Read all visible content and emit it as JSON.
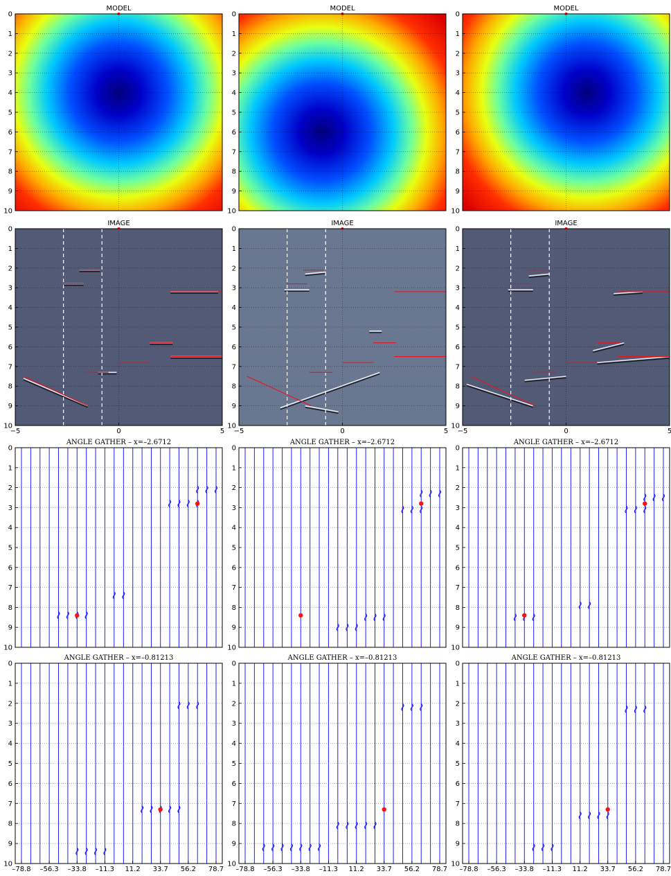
{
  "chart_data": {
    "type": "figure_grid",
    "rows": [
      {
        "title": "MODEL",
        "type": "heatmap",
        "xlim": [
          -5,
          5
        ],
        "ylim": [
          0,
          10
        ],
        "yticks": [
          "0",
          "1",
          "2",
          "3",
          "4",
          "5",
          "6",
          "7",
          "8",
          "9",
          "10"
        ],
        "xticks": [],
        "panels": [
          {
            "center": [
              0,
              4
            ]
          },
          {
            "center": [
              -1,
              6
            ]
          },
          {
            "center": [
              1,
              4
            ]
          }
        ]
      },
      {
        "title": "IMAGE",
        "type": "heatmap",
        "xlim": [
          -5,
          5
        ],
        "ylim": [
          0,
          10
        ],
        "yticks": [
          "0",
          "1",
          "2",
          "3",
          "4",
          "5",
          "6",
          "7",
          "8",
          "9",
          "10"
        ],
        "xticks": [
          "-5",
          "0",
          "5"
        ],
        "dashed_lines_x": [
          -2.6712,
          -0.81213
        ],
        "true_reflectors": [
          {
            "x": [
              -2.7,
              -1.7
            ],
            "y": [
              2.8,
              2.8
            ]
          },
          {
            "x": [
              -1.9,
              -0.9
            ],
            "y": [
              2.1,
              2.1
            ]
          },
          {
            "x": [
              2.5,
              5.0
            ],
            "y": [
              3.2,
              3.2
            ]
          },
          {
            "x": [
              1.5,
              2.6
            ],
            "y": [
              5.8,
              5.8
            ]
          },
          {
            "x": [
              2.5,
              5.0
            ],
            "y": [
              6.5,
              6.5
            ]
          },
          {
            "x": [
              0.0,
              1.5
            ],
            "y": [
              6.8,
              6.8
            ]
          },
          {
            "x": [
              -1.6,
              -0.5
            ],
            "y": [
              7.3,
              7.3
            ]
          },
          {
            "x": [
              -4.6,
              -1.5
            ],
            "y": [
              7.5,
              9.0
            ]
          }
        ]
      },
      {
        "title": "ANGLE GATHER – x=–2.6712",
        "type": "line",
        "ylim": [
          0,
          10
        ],
        "yticks": [
          "0",
          "1",
          "2",
          "3",
          "4",
          "5",
          "6",
          "7",
          "8",
          "9",
          "10"
        ],
        "xticks": [],
        "trace_angles": [
          -78.8,
          -71.3,
          -63.8,
          -56.3,
          -48.8,
          -41.3,
          -33.8,
          -26.3,
          -18.8,
          -11.3,
          -3.8,
          3.8,
          11.3,
          18.8,
          26.3,
          33.7,
          41.2,
          48.7,
          56.2,
          63.7,
          71.2,
          78.7
        ],
        "markers": [
          {
            "angle": -33.8,
            "depth": 8.4
          },
          {
            "angle": 63.7,
            "depth": 2.8
          }
        ]
      },
      {
        "title": "ANGLE GATHER – x=–0.81213",
        "type": "line",
        "ylim": [
          0,
          10
        ],
        "yticks": [
          "0",
          "1",
          "2",
          "3",
          "4",
          "5",
          "6",
          "7",
          "8",
          "9",
          "10"
        ],
        "xticks": [
          "–78.8",
          "–56.3",
          "–33.8",
          "–11.3",
          "11.2",
          "33.7",
          "56.2",
          "78.7"
        ],
        "trace_angles": [
          -78.8,
          -71.3,
          -63.8,
          -56.3,
          -48.8,
          -41.3,
          -33.8,
          -26.3,
          -18.8,
          -11.3,
          -3.8,
          3.8,
          11.3,
          18.8,
          26.3,
          33.7,
          41.2,
          48.7,
          56.2,
          63.7,
          71.2,
          78.7
        ],
        "markers": [
          {
            "angle": 33.7,
            "depth": 7.3
          }
        ]
      }
    ],
    "colors": {
      "reflector": "#e8141c",
      "trace": "#1e1eff",
      "marker": "#ff1010"
    }
  }
}
